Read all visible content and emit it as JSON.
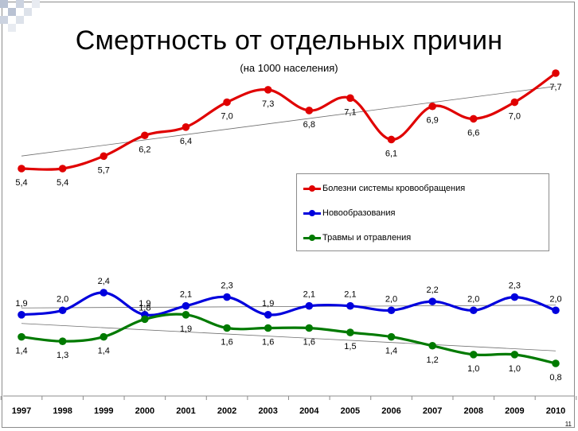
{
  "slide": {
    "title": "Смертность от отдельных причин",
    "subtitle": "(на 1000 населения)",
    "page_number": "11"
  },
  "legend": [
    {
      "name": "Болезни системы кровообращения",
      "color": "#e00000"
    },
    {
      "name": "Новообразования",
      "color": "#0000dd"
    },
    {
      "name": "Травмы и отравления",
      "color": "#007a00"
    }
  ],
  "chart_data": {
    "type": "line",
    "title": "Смертность от отдельных причин",
    "subtitle": "(на 1000 населения)",
    "x": [
      "1997",
      "1998",
      "1999",
      "2000",
      "2001",
      "2002",
      "2003",
      "2004",
      "2005",
      "2006",
      "2007",
      "2008",
      "2009",
      "2010"
    ],
    "series": [
      {
        "name": "Болезни системы кровообращения",
        "color": "#e00000",
        "values": [
          5.4,
          5.4,
          5.7,
          6.2,
          6.4,
          7.0,
          7.3,
          6.8,
          7.1,
          6.1,
          6.9,
          6.6,
          7.0,
          7.7
        ],
        "labels": [
          "5,4",
          "5,4",
          "5,7",
          "6,2",
          "6,4",
          "7,0",
          "7,3",
          "6,8",
          "7,1",
          "6,1",
          "6,9",
          "6,6",
          "7,0",
          "7,7"
        ],
        "label_positions": [
          "below",
          "below",
          "below",
          "below",
          "below",
          "below",
          "below",
          "below",
          "below",
          "below",
          "below",
          "below",
          "below",
          "below"
        ]
      },
      {
        "name": "Новообразования",
        "color": "#0000dd",
        "values": [
          1.9,
          2.0,
          2.4,
          1.9,
          2.1,
          2.3,
          1.9,
          2.1,
          2.1,
          2.0,
          2.2,
          2.0,
          2.3,
          2.0
        ],
        "labels": [
          "1,9",
          "2,0",
          "2,4",
          "1,9",
          "2,1",
          "2,3",
          "1,9",
          "2,1",
          "2,1",
          "2,0",
          "2,2",
          "2,0",
          "2,3",
          "2,0"
        ],
        "label_positions": [
          "above",
          "above",
          "above",
          "above",
          "above",
          "above",
          "above",
          "above",
          "above",
          "above",
          "above",
          "above",
          "above",
          "above"
        ]
      },
      {
        "name": "Травмы и отравления",
        "color": "#007a00",
        "values": [
          1.4,
          1.3,
          1.4,
          1.8,
          1.9,
          1.6,
          1.6,
          1.6,
          1.5,
          1.4,
          1.2,
          1.0,
          1.0,
          0.8
        ],
        "labels": [
          "1,4",
          "1,3",
          "1,4",
          "1,8",
          "1,9",
          "1,6",
          "1,6",
          "1,6",
          "1,5",
          "1,4",
          "1,2",
          "1,0",
          "1,0",
          "0,8"
        ],
        "label_positions": [
          "below",
          "below",
          "below",
          "above",
          "below",
          "below",
          "below",
          "below",
          "below",
          "below",
          "below",
          "below",
          "below",
          "below"
        ]
      }
    ],
    "trendlines": true,
    "y_axis_visible": false,
    "grid": false,
    "legend_position": "right-middle"
  }
}
